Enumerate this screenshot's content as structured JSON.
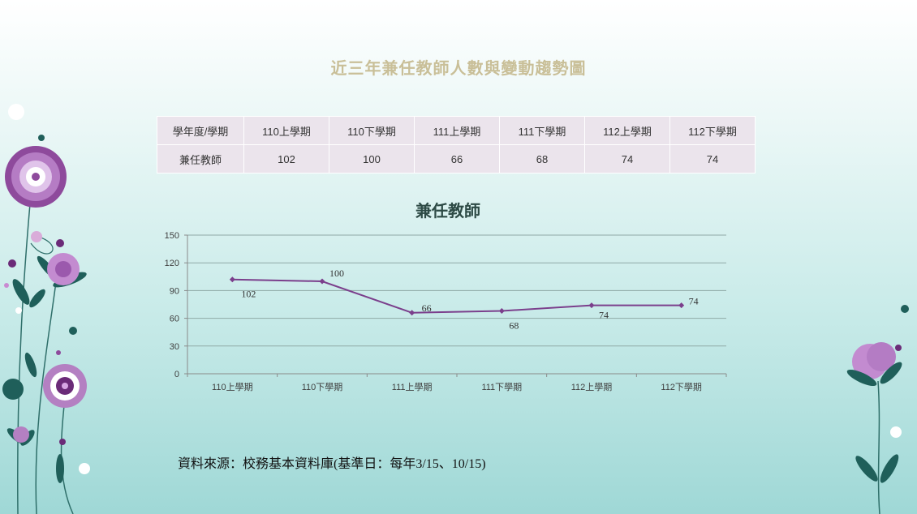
{
  "title": "近三年兼任教師人數與變動趨勢圖",
  "table": {
    "header": [
      "學年度/學期",
      "110上學期",
      "110下學期",
      "111上學期",
      "111下學期",
      "112上學期",
      "112下學期"
    ],
    "row": [
      "兼任教師",
      "102",
      "100",
      "66",
      "68",
      "74",
      "74"
    ]
  },
  "source_note": "資料來源：校務基本資料庫(基準日：每年3/15、10/15)",
  "colors": {
    "line": "#7b3f8c",
    "title": "#c9bf98",
    "table_bg": "#ebe4ec"
  },
  "chart_data": {
    "type": "line",
    "title": "兼任教師",
    "categories": [
      "110上學期",
      "110下學期",
      "111上學期",
      "111下學期",
      "112上學期",
      "112下學期"
    ],
    "series": [
      {
        "name": "兼任教師",
        "values": [
          102,
          100,
          66,
          68,
          74,
          74
        ]
      }
    ],
    "ylim": [
      0,
      150
    ],
    "yticks": [
      0,
      30,
      60,
      90,
      120,
      150
    ],
    "grid": true,
    "data_labels": true
  }
}
